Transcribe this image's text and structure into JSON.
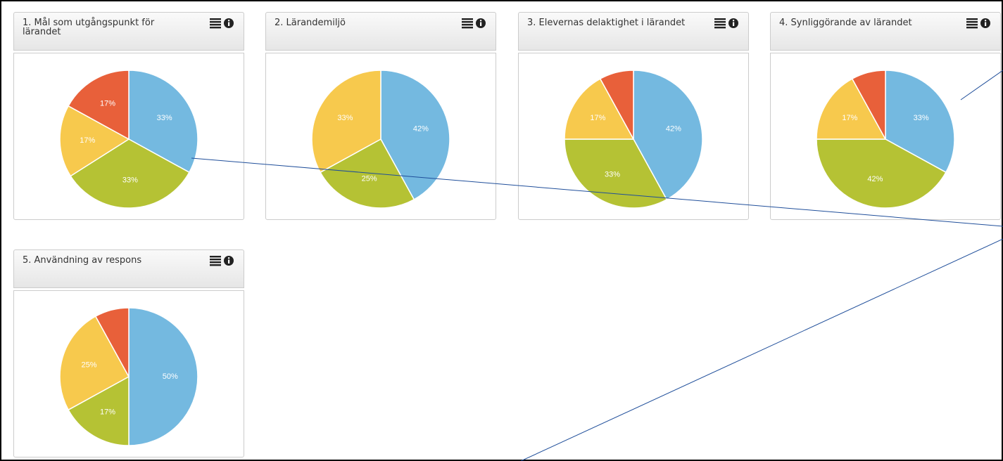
{
  "chart_data": [
    {
      "type": "pie",
      "title": "1. Mål som utgångspunkt för lärandet",
      "values": [
        33,
        33,
        17,
        17
      ],
      "value_labels": [
        "33%",
        "33%",
        "17%",
        "17%"
      ],
      "colors": [
        "#74b9e0",
        "#b5c234",
        "#f7c94d",
        "#e8603a"
      ]
    },
    {
      "type": "pie",
      "title": "2. Lärandemiljö",
      "values": [
        42,
        25,
        33
      ],
      "value_labels": [
        "42%",
        "25%",
        "33%"
      ],
      "colors": [
        "#74b9e0",
        "#b5c234",
        "#f7c94d"
      ]
    },
    {
      "type": "pie",
      "title": "3. Elevernas delaktighet i lärandet",
      "values": [
        42,
        33,
        17,
        8
      ],
      "value_labels": [
        "42%",
        "33%",
        "17%",
        null
      ],
      "colors": [
        "#74b9e0",
        "#b5c234",
        "#f7c94d",
        "#e8603a"
      ]
    },
    {
      "type": "pie",
      "title": "4. Synliggörande av lärandet",
      "values": [
        33,
        42,
        17,
        8
      ],
      "value_labels": [
        "33%",
        "42%",
        "17%",
        null
      ],
      "colors": [
        "#74b9e0",
        "#b5c234",
        "#f7c94d",
        "#e8603a"
      ]
    },
    {
      "type": "pie",
      "title": "5. Användning av respons",
      "values": [
        50,
        17,
        25,
        8
      ],
      "value_labels": [
        "50%",
        "17%",
        "25%",
        null
      ],
      "colors": [
        "#74b9e0",
        "#b5c234",
        "#f7c94d",
        "#e8603a"
      ]
    }
  ]
}
